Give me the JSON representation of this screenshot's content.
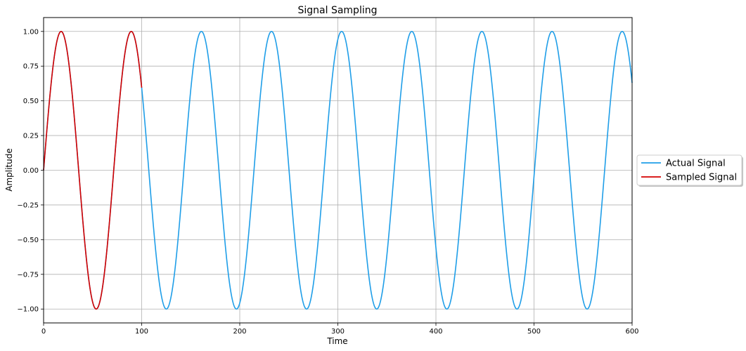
{
  "chart_data": {
    "type": "line",
    "title": "Signal Sampling",
    "xlabel": "Time",
    "ylabel": "Amplitude",
    "xlim": [
      0,
      600
    ],
    "ylim": [
      -1.1,
      1.1
    ],
    "xticks": [
      0,
      100,
      200,
      300,
      400,
      500,
      600
    ],
    "xtick_labels": [
      "0",
      "100",
      "200",
      "300",
      "400",
      "500",
      "600"
    ],
    "yticks": [
      -1.0,
      -0.75,
      -0.5,
      -0.25,
      0.0,
      0.25,
      0.5,
      0.75,
      1.0
    ],
    "ytick_labels": [
      "−1.00",
      "−0.75",
      "−0.50",
      "−0.25",
      "0.00",
      "0.25",
      "0.50",
      "0.75",
      "1.00"
    ],
    "grid": true,
    "legend_position": "right-outside",
    "series": [
      {
        "name": "Actual Signal",
        "color": "#1f9ee8",
        "function": "sin",
        "amplitude": 1,
        "period": 71.5,
        "x_range": [
          0,
          600
        ]
      },
      {
        "name": "Sampled Signal",
        "color": "#d40000",
        "function": "sin",
        "amplitude": 1,
        "period": 71.5,
        "x_range": [
          0,
          100
        ]
      }
    ]
  }
}
